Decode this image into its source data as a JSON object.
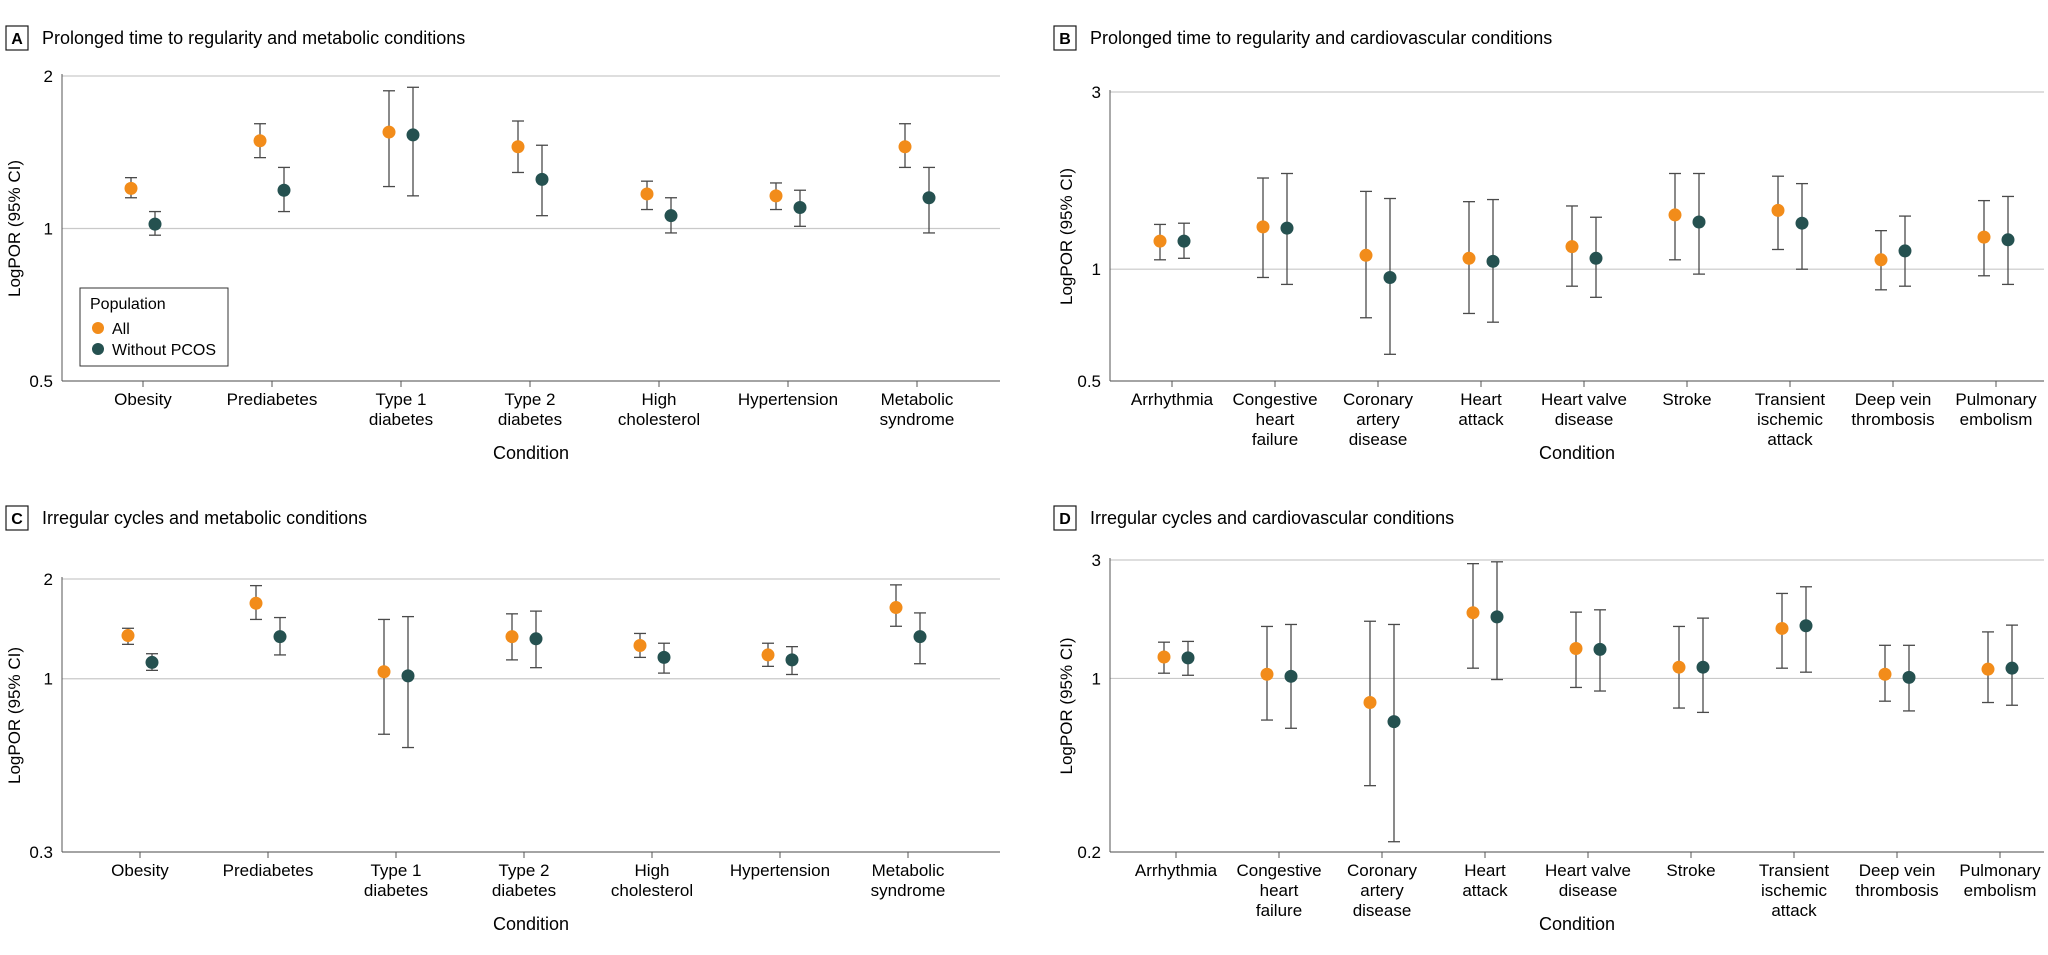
{
  "colors": {
    "all": "#F28C1A",
    "without_pcos": "#255150",
    "grid": "#c9c9c9",
    "text": "#1a1a1a"
  },
  "chart_data": [
    {
      "id": "A",
      "type": "scatter",
      "letter": "A",
      "title": "Prolonged time to regularity and metabolic conditions",
      "xlabel": "Condition",
      "ylabel": "LogPOR (95% CI)",
      "yscale": "log",
      "ylim": [
        0.5,
        2
      ],
      "yticks": [
        {
          "v": 0.5,
          "label": "0.5"
        },
        {
          "v": 1,
          "label": "1"
        },
        {
          "v": 2,
          "label": "2"
        }
      ],
      "categories": [
        {
          "lines": [
            "Obesity"
          ]
        },
        {
          "lines": [
            "Prediabetes"
          ]
        },
        {
          "lines": [
            "Type 1",
            "diabetes"
          ]
        },
        {
          "lines": [
            "Type 2",
            "diabetes"
          ]
        },
        {
          "lines": [
            "High",
            "cholesterol"
          ]
        },
        {
          "lines": [
            "Hypertension"
          ]
        },
        {
          "lines": [
            "Metabolic",
            "syndrome"
          ]
        }
      ],
      "legend": {
        "title": "Population",
        "items": [
          "All",
          "Without PCOS"
        ]
      },
      "series": [
        {
          "name": "All",
          "points": [
            {
              "est": 1.2,
              "lo": 1.15,
              "hi": 1.26
            },
            {
              "est": 1.49,
              "lo": 1.38,
              "hi": 1.61
            },
            {
              "est": 1.55,
              "lo": 1.21,
              "hi": 1.87
            },
            {
              "est": 1.45,
              "lo": 1.29,
              "hi": 1.63
            },
            {
              "est": 1.17,
              "lo": 1.09,
              "hi": 1.24
            },
            {
              "est": 1.16,
              "lo": 1.09,
              "hi": 1.23
            },
            {
              "est": 1.45,
              "lo": 1.32,
              "hi": 1.61
            }
          ]
        },
        {
          "name": "Without PCOS",
          "points": [
            {
              "est": 1.02,
              "lo": 0.97,
              "hi": 1.08
            },
            {
              "est": 1.19,
              "lo": 1.08,
              "hi": 1.32
            },
            {
              "est": 1.53,
              "lo": 1.16,
              "hi": 1.9
            },
            {
              "est": 1.25,
              "lo": 1.06,
              "hi": 1.46
            },
            {
              "est": 1.06,
              "lo": 0.98,
              "hi": 1.15
            },
            {
              "est": 1.1,
              "lo": 1.01,
              "hi": 1.19
            },
            {
              "est": 1.15,
              "lo": 0.98,
              "hi": 1.32
            }
          ]
        }
      ]
    },
    {
      "id": "B",
      "type": "scatter",
      "letter": "B",
      "title": "Prolonged time to regularity and cardiovascular conditions",
      "xlabel": "Condition",
      "ylabel": "LogPOR (95% CI)",
      "yscale": "log",
      "ylim": [
        0.5,
        3
      ],
      "yticks": [
        {
          "v": 0.5,
          "label": "0.5"
        },
        {
          "v": 1,
          "label": "1"
        },
        {
          "v": 3,
          "label": "3"
        }
      ],
      "categories": [
        {
          "lines": [
            "Arrhythmia"
          ]
        },
        {
          "lines": [
            "Congestive",
            "heart",
            "failure"
          ]
        },
        {
          "lines": [
            "Coronary",
            "artery",
            "disease"
          ]
        },
        {
          "lines": [
            "Heart",
            "attack"
          ]
        },
        {
          "lines": [
            "Heart valve",
            "disease"
          ]
        },
        {
          "lines": [
            "Stroke"
          ]
        },
        {
          "lines": [
            "Transient",
            "ischemic",
            "attack"
          ]
        },
        {
          "lines": [
            "Deep vein",
            "thrombosis"
          ]
        },
        {
          "lines": [
            "Pulmonary",
            "embolism"
          ]
        }
      ],
      "series": [
        {
          "name": "All",
          "points": [
            {
              "est": 1.19,
              "lo": 1.06,
              "hi": 1.32
            },
            {
              "est": 1.3,
              "lo": 0.95,
              "hi": 1.76
            },
            {
              "est": 1.09,
              "lo": 0.74,
              "hi": 1.62
            },
            {
              "est": 1.07,
              "lo": 0.76,
              "hi": 1.52
            },
            {
              "est": 1.15,
              "lo": 0.9,
              "hi": 1.48
            },
            {
              "est": 1.4,
              "lo": 1.06,
              "hi": 1.81
            },
            {
              "est": 1.44,
              "lo": 1.13,
              "hi": 1.78
            },
            {
              "est": 1.06,
              "lo": 0.88,
              "hi": 1.27
            },
            {
              "est": 1.22,
              "lo": 0.96,
              "hi": 1.53
            }
          ]
        },
        {
          "name": "Without PCOS",
          "points": [
            {
              "est": 1.19,
              "lo": 1.07,
              "hi": 1.33
            },
            {
              "est": 1.29,
              "lo": 0.91,
              "hi": 1.81
            },
            {
              "est": 0.95,
              "lo": 0.59,
              "hi": 1.55
            },
            {
              "est": 1.05,
              "lo": 0.72,
              "hi": 1.54
            },
            {
              "est": 1.07,
              "lo": 0.84,
              "hi": 1.38
            },
            {
              "est": 1.34,
              "lo": 0.97,
              "hi": 1.81
            },
            {
              "est": 1.33,
              "lo": 1.0,
              "hi": 1.7
            },
            {
              "est": 1.12,
              "lo": 0.9,
              "hi": 1.39
            },
            {
              "est": 1.2,
              "lo": 0.91,
              "hi": 1.57
            }
          ]
        }
      ]
    },
    {
      "id": "C",
      "type": "scatter",
      "letter": "C",
      "title": "Irregular cycles and metabolic conditions",
      "xlabel": "Condition",
      "ylabel": "LogPOR (95% CI)",
      "yscale": "log",
      "ylim": [
        0.3,
        2
      ],
      "yticks": [
        {
          "v": 0.3,
          "label": "0.3"
        },
        {
          "v": 1,
          "label": "1"
        },
        {
          "v": 2,
          "label": "2"
        }
      ],
      "categories": [
        {
          "lines": [
            "Obesity"
          ]
        },
        {
          "lines": [
            "Prediabetes"
          ]
        },
        {
          "lines": [
            "Type 1",
            "diabetes"
          ]
        },
        {
          "lines": [
            "Type 2",
            "diabetes"
          ]
        },
        {
          "lines": [
            "High",
            "cholesterol"
          ]
        },
        {
          "lines": [
            "Hypertension"
          ]
        },
        {
          "lines": [
            "Metabolic",
            "syndrome"
          ]
        }
      ],
      "series": [
        {
          "name": "All",
          "points": [
            {
              "est": 1.35,
              "lo": 1.27,
              "hi": 1.42
            },
            {
              "est": 1.69,
              "lo": 1.51,
              "hi": 1.91
            },
            {
              "est": 1.05,
              "lo": 0.68,
              "hi": 1.51
            },
            {
              "est": 1.34,
              "lo": 1.14,
              "hi": 1.57
            },
            {
              "est": 1.26,
              "lo": 1.16,
              "hi": 1.37
            },
            {
              "est": 1.18,
              "lo": 1.09,
              "hi": 1.28
            },
            {
              "est": 1.64,
              "lo": 1.44,
              "hi": 1.92
            }
          ]
        },
        {
          "name": "Without PCOS",
          "points": [
            {
              "est": 1.12,
              "lo": 1.06,
              "hi": 1.19
            },
            {
              "est": 1.34,
              "lo": 1.18,
              "hi": 1.53
            },
            {
              "est": 1.02,
              "lo": 0.62,
              "hi": 1.54
            },
            {
              "est": 1.32,
              "lo": 1.08,
              "hi": 1.6
            },
            {
              "est": 1.16,
              "lo": 1.04,
              "hi": 1.28
            },
            {
              "est": 1.14,
              "lo": 1.03,
              "hi": 1.25
            },
            {
              "est": 1.34,
              "lo": 1.11,
              "hi": 1.58
            }
          ]
        }
      ]
    },
    {
      "id": "D",
      "type": "scatter",
      "letter": "D",
      "title": "Irregular cycles and cardiovascular conditions",
      "xlabel": "Condition",
      "ylabel": "LogPOR (95% CI)",
      "yscale": "log",
      "ylim": [
        0.2,
        3
      ],
      "yticks": [
        {
          "v": 0.2,
          "label": "0.2"
        },
        {
          "v": 1,
          "label": "1"
        },
        {
          "v": 3,
          "label": "3"
        }
      ],
      "categories": [
        {
          "lines": [
            "Arrhythmia"
          ]
        },
        {
          "lines": [
            "Congestive",
            "heart",
            "failure"
          ]
        },
        {
          "lines": [
            "Coronary",
            "artery",
            "disease"
          ]
        },
        {
          "lines": [
            "Heart",
            "attack"
          ]
        },
        {
          "lines": [
            "Heart valve",
            "disease"
          ]
        },
        {
          "lines": [
            "Stroke"
          ]
        },
        {
          "lines": [
            "Transient",
            "ischemic",
            "attack"
          ]
        },
        {
          "lines": [
            "Deep vein",
            "thrombosis"
          ]
        },
        {
          "lines": [
            "Pulmonary",
            "embolism"
          ]
        }
      ],
      "series": [
        {
          "name": "All",
          "points": [
            {
              "est": 1.22,
              "lo": 1.05,
              "hi": 1.4
            },
            {
              "est": 1.04,
              "lo": 0.68,
              "hi": 1.62
            },
            {
              "est": 0.8,
              "lo": 0.37,
              "hi": 1.7
            },
            {
              "est": 1.84,
              "lo": 1.1,
              "hi": 2.9
            },
            {
              "est": 1.32,
              "lo": 0.92,
              "hi": 1.85
            },
            {
              "est": 1.11,
              "lo": 0.76,
              "hi": 1.62
            },
            {
              "est": 1.59,
              "lo": 1.1,
              "hi": 2.2
            },
            {
              "est": 1.04,
              "lo": 0.81,
              "hi": 1.36
            },
            {
              "est": 1.09,
              "lo": 0.8,
              "hi": 1.54
            }
          ]
        },
        {
          "name": "Without PCOS",
          "points": [
            {
              "est": 1.21,
              "lo": 1.03,
              "hi": 1.41
            },
            {
              "est": 1.02,
              "lo": 0.63,
              "hi": 1.65
            },
            {
              "est": 0.67,
              "lo": 0.22,
              "hi": 1.65
            },
            {
              "est": 1.77,
              "lo": 0.99,
              "hi": 2.95
            },
            {
              "est": 1.31,
              "lo": 0.89,
              "hi": 1.89
            },
            {
              "est": 1.11,
              "lo": 0.73,
              "hi": 1.75
            },
            {
              "est": 1.63,
              "lo": 1.06,
              "hi": 2.34
            },
            {
              "est": 1.01,
              "lo": 0.74,
              "hi": 1.36
            },
            {
              "est": 1.1,
              "lo": 0.78,
              "hi": 1.64
            }
          ]
        }
      ]
    }
  ]
}
